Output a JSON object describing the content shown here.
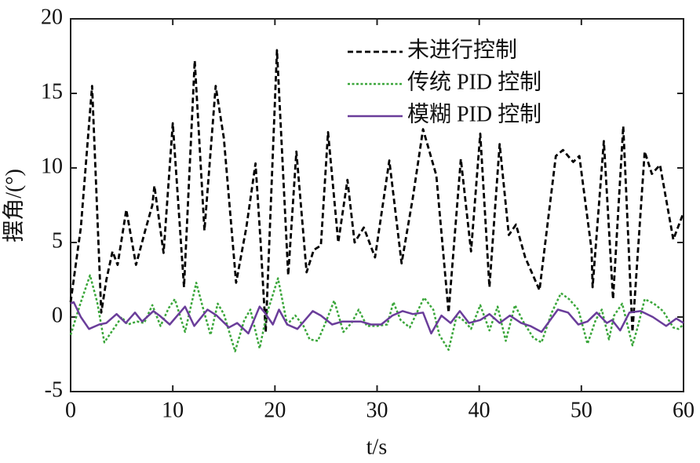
{
  "chart_data": {
    "type": "line",
    "xlabel": "t/s",
    "ylabel": "摆角/(°)",
    "xlim": [
      0,
      60
    ],
    "xticks": [
      0,
      10,
      20,
      30,
      40,
      50,
      60
    ],
    "ylim": [
      -5,
      20
    ],
    "yticks": [
      -5,
      0,
      5,
      10,
      15,
      20
    ],
    "legend": "upper right",
    "series": [
      {
        "name": "未进行控制",
        "color": "#000000",
        "linestyle": "dashed",
        "x": [
          0,
          1,
          2.1,
          3.0,
          3.5,
          4.1,
          4.6,
          5.45,
          6.4,
          7.3,
          8.0,
          8.2,
          9.1,
          10.0,
          11.1,
          12.15,
          13.1,
          14.2,
          15.0,
          16.2,
          17.2,
          18.1,
          18.6,
          19.1,
          20.2,
          21.3,
          22.1,
          23.1,
          23.8,
          24.5,
          25.2,
          26.2,
          27.1,
          27.8,
          28.7,
          29.8,
          31.2,
          32.4,
          33.5,
          34.5,
          35.8,
          37.0,
          38.2,
          39.2,
          40.1,
          41.0,
          42.0,
          42.9,
          43.6,
          44.5,
          45.9,
          47.5,
          48.2,
          49.2,
          49.8,
          51.0,
          51.1,
          52.2,
          53.1,
          54.1,
          55.0,
          56.2,
          56.9,
          57.7,
          59.0,
          60
        ],
        "values": [
          1,
          6,
          15.5,
          0.3,
          2.5,
          4.4,
          3.5,
          7.2,
          3.5,
          5.8,
          7.5,
          8.8,
          4.3,
          13,
          2,
          17.2,
          5.8,
          15.5,
          12,
          2.3,
          6,
          10.3,
          5,
          -1,
          17.9,
          2.8,
          11.1,
          3,
          4.5,
          4.8,
          12.4,
          5,
          9.2,
          5,
          6,
          4.0,
          10.5,
          3.6,
          8,
          12.6,
          9.5,
          0.3,
          10.6,
          4.4,
          12.3,
          2,
          11.6,
          5.5,
          6.2,
          4,
          1.8,
          10.8,
          11.2,
          10.4,
          10.8,
          4.5,
          2,
          11.8,
          1.2,
          12.8,
          -1,
          11.1,
          9.6,
          10.2,
          5.2,
          7
        ]
      },
      {
        "name": "传统 PID 控制",
        "color": "#3aa63a",
        "linestyle": "dotted",
        "x": [
          0,
          1,
          1.9,
          2.6,
          3.3,
          4.2,
          5,
          5.6,
          6.5,
          7.2,
          8,
          8.8,
          9.6,
          10.2,
          11.2,
          12.3,
          13.0,
          13.7,
          14.4,
          15.0,
          16.1,
          17.0,
          17.6,
          18.5,
          19.2,
          20.3,
          21.2,
          22.0,
          22.8,
          23.4,
          24.2,
          25.0,
          25.8,
          26.7,
          27.5,
          28.2,
          29,
          30,
          31.0,
          31.6,
          32.3,
          33.2,
          34.6,
          35.5,
          36.1,
          37.0,
          37.8,
          38.6,
          39.2,
          40.1,
          41.0,
          41.8,
          42.6,
          43.5,
          44.3,
          45.3,
          46.1,
          47.1,
          48.0,
          48.8,
          49.7,
          50.6,
          51.4,
          52.0,
          52.7,
          53.2,
          54.0,
          55.0,
          55.5,
          56.2,
          57.1,
          58.0,
          59.0,
          59.5,
          60
        ],
        "values": [
          -1.2,
          1,
          2.8,
          1,
          -1.7,
          -0.8,
          0.0,
          -0.5,
          -0.3,
          -0.4,
          0.8,
          -0.6,
          0.6,
          1.2,
          -1,
          2.3,
          0.5,
          -1.2,
          0.9,
          0.2,
          -2.3,
          -0.2,
          0.5,
          -2.1,
          0.2,
          2.6,
          -0.5,
          0.1,
          -0.6,
          -1.5,
          -1.6,
          -0.3,
          1.1,
          -1.0,
          -0.4,
          0.5,
          -0.6,
          -0.6,
          -0.5,
          1.0,
          -0.2,
          -0.7,
          1.3,
          0.5,
          -1.2,
          -2.2,
          0.1,
          -0.3,
          -0.8,
          0.8,
          -0.9,
          0.7,
          -1.6,
          0.8,
          -0.3,
          -1.4,
          -1.7,
          0.3,
          1.6,
          1.2,
          0.5,
          -1.8,
          -0.2,
          0.5,
          -1.5,
          0.1,
          0.9,
          -1.9,
          -0.7,
          1.2,
          0.9,
          0.4,
          -0.7,
          -0.8,
          -0.5
        ]
      },
      {
        "name": "模糊 PID 控制",
        "color": "#6a3d9a",
        "linestyle": "solid",
        "x": [
          0,
          0.3,
          1,
          1.8,
          2.8,
          3.5,
          4.5,
          5.4,
          6.3,
          7.0,
          8.1,
          8.7,
          9.7,
          11.2,
          12.1,
          13.4,
          14.3,
          15.5,
          16.3,
          17.4,
          18.5,
          19.0,
          19.8,
          20.4,
          21.2,
          22.2,
          23.7,
          24.5,
          25.6,
          26.6,
          27.3,
          28.4,
          29.4,
          30.4,
          31.5,
          32.5,
          33.5,
          34.5,
          35.3,
          36.3,
          37.2,
          38.1,
          39.0,
          40.1,
          41.0,
          42.0,
          43.0,
          44.1,
          45.0,
          46.1,
          47.7,
          48.7,
          49.7,
          50.6,
          51.5,
          52.5,
          53.0,
          53.8,
          54.7,
          55.8,
          57.0,
          58.3,
          59.3,
          60
        ],
        "values": [
          0.9,
          1.0,
          0,
          -0.8,
          -0.5,
          -0.4,
          0.2,
          -0.4,
          0.3,
          -0.3,
          0.4,
          0.1,
          -0.5,
          0.7,
          -0.6,
          0.5,
          0.1,
          -0.7,
          -0.4,
          -1.1,
          0.7,
          0.3,
          -0.5,
          0.5,
          -0.5,
          -0.8,
          0.4,
          0.1,
          -0.5,
          -0.3,
          -0.3,
          -0.3,
          -0.5,
          -0.5,
          0.1,
          0.4,
          0.2,
          0.3,
          -1.1,
          0.1,
          -0.4,
          0.4,
          -0.4,
          -0.2,
          0.2,
          -0.4,
          0.1,
          -0.4,
          -0.6,
          -1.0,
          0.5,
          0.3,
          -0.5,
          -0.3,
          0.3,
          -0.4,
          -0.2,
          -0.9,
          0.3,
          0.4,
          0.0,
          -0.6,
          -0.1,
          -0.4
        ]
      }
    ]
  }
}
